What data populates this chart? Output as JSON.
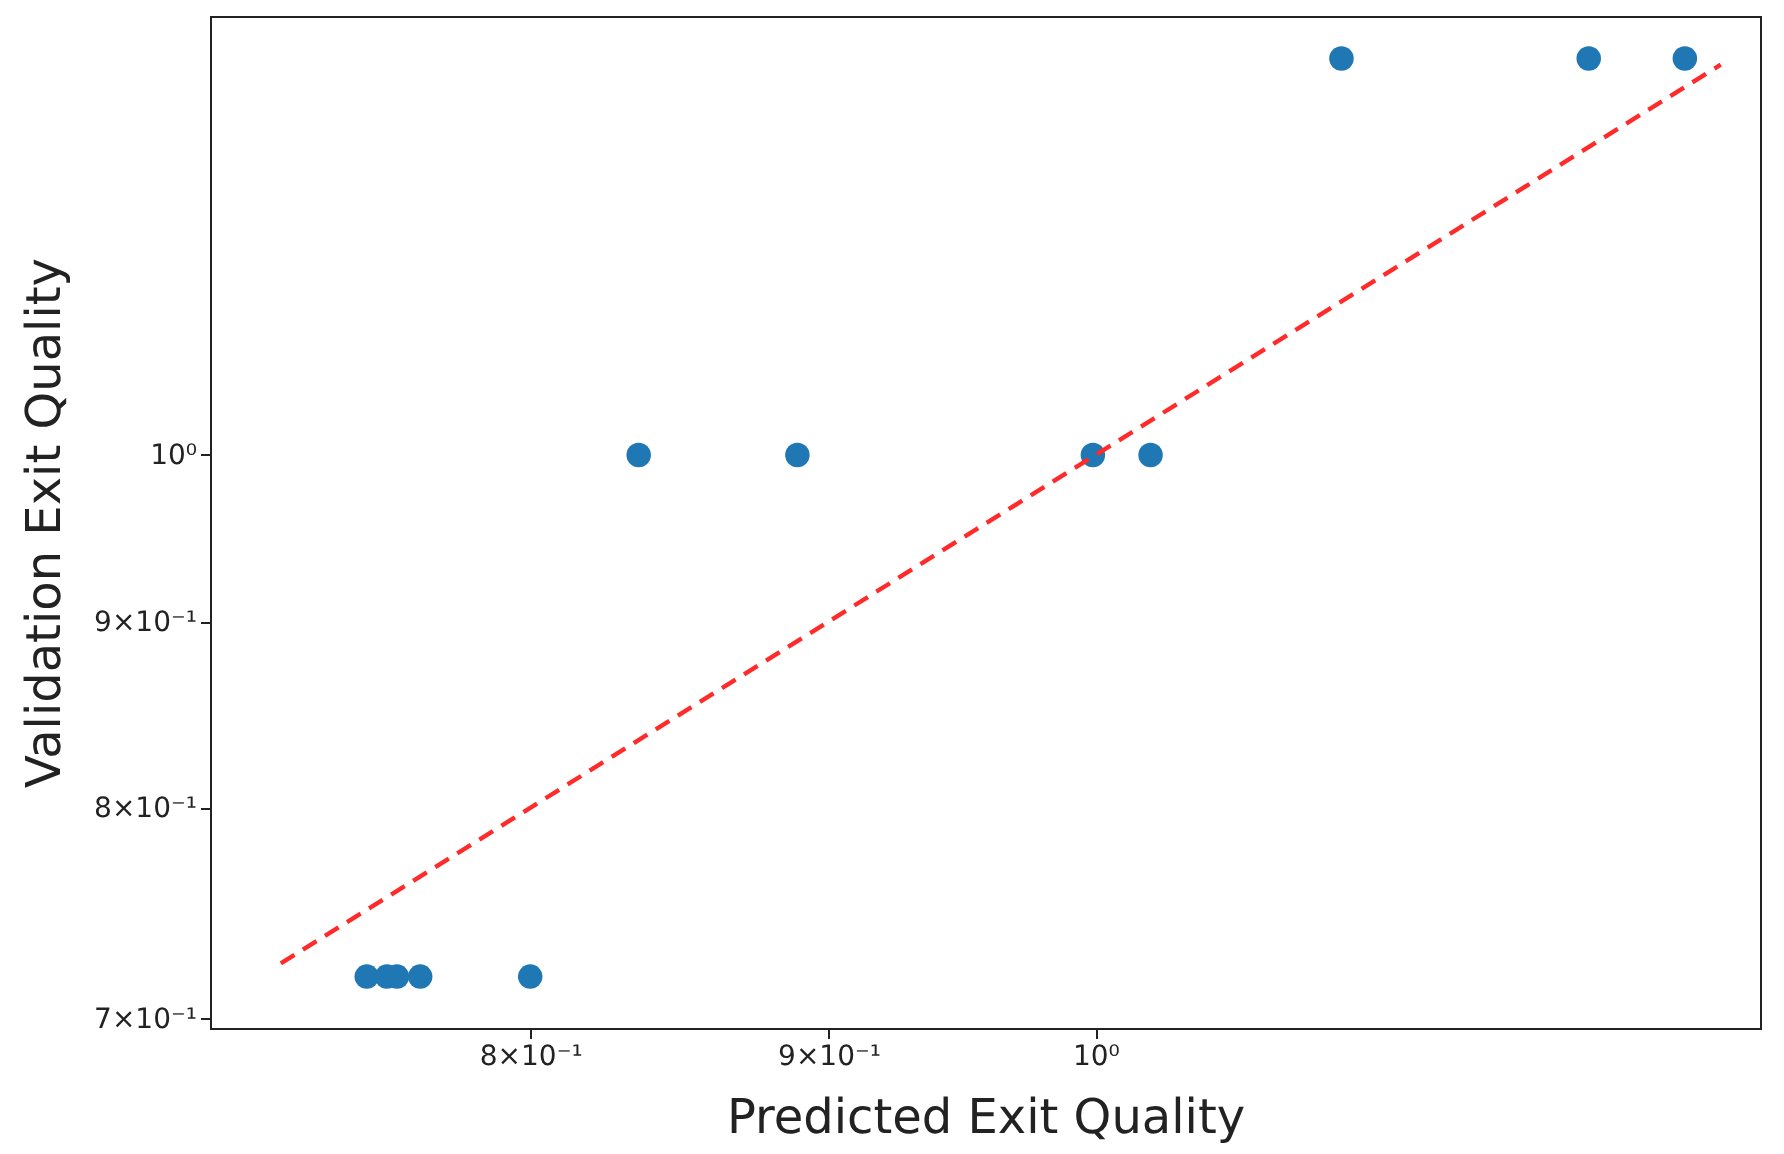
{
  "chart_data": {
    "type": "scatter",
    "xlabel": "Predicted Exit Quality",
    "ylabel": "Validation Exit Quality",
    "log": "xy",
    "grid": false,
    "marker": "circle",
    "xlim": [
      0.705,
      1.3
    ],
    "ylim": [
      0.696,
      1.32
    ],
    "xticks": [
      {
        "value": 0.8,
        "label": "8×10⁻¹"
      },
      {
        "value": 0.9,
        "label": "9×10⁻¹"
      },
      {
        "value": 1,
        "label": "10⁰"
      }
    ],
    "yticks": [
      {
        "value": 0.7,
        "label": "7×10⁻¹"
      },
      {
        "value": 0.8,
        "label": "8×10⁻¹"
      },
      {
        "value": 0.9,
        "label": "9×10⁻¹"
      },
      {
        "value": 1,
        "label": "10⁰"
      }
    ],
    "series": [
      {
        "color": "#1f77b4",
        "x": [
          0.75,
          0.756,
          0.759,
          0.766,
          0.8,
          0.835,
          0.889,
          0.999,
          1.022,
          1.102,
          1.215,
          1.262
        ],
        "values": [
          0.719,
          0.719,
          0.719,
          0.719,
          0.719,
          1,
          1,
          1,
          1,
          1.285,
          1.285,
          1.285
        ]
      },
      {
        "type": "line",
        "color": "#ff2a2a",
        "line_style": "dashed",
        "marker": "none",
        "x": [
          0.725,
          1.28
        ],
        "values": [
          0.725,
          1.28
        ]
      }
    ]
  }
}
